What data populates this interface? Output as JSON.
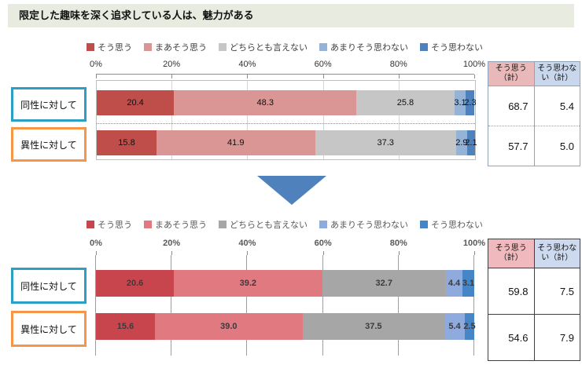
{
  "title": "限定した趣味を深く追求している人は、魅力がある",
  "arrow": {
    "color": "#4f81bd"
  },
  "chart_data": [
    {
      "type": "bar",
      "stacked": true,
      "orientation": "horizontal",
      "legend_position": "top",
      "grid": true,
      "xlim": [
        0,
        100
      ],
      "x_ticks": [
        "0%",
        "20%",
        "40%",
        "60%",
        "80%",
        "100%"
      ],
      "categories": [
        "同性に対して",
        "異性に対して"
      ],
      "category_box_colors": [
        "#2ca0c4",
        "#f79646"
      ],
      "series": [
        {
          "name": "そう思う",
          "color": "#bf4e4b",
          "values": [
            20.4,
            15.8
          ]
        },
        {
          "name": "まあそう思う",
          "color": "#d99694",
          "values": [
            48.3,
            41.9
          ]
        },
        {
          "name": "どちらとも言えない",
          "color": "#c6c6c6",
          "values": [
            25.8,
            37.3
          ]
        },
        {
          "name": "あまりそう思わない",
          "color": "#95b3d7",
          "values": [
            3.1,
            2.9
          ]
        },
        {
          "name": "そう思わない",
          "color": "#4f81bd",
          "values": [
            2.3,
            2.1
          ]
        }
      ],
      "summary_table": {
        "headers": [
          "そう思う（計）",
          "そう思わない（計）"
        ],
        "header_bg": [
          "#e8b9b8",
          "#c8d7eb"
        ],
        "rows": [
          [
            "68.7",
            "5.4"
          ],
          [
            "57.7",
            "5.0"
          ]
        ]
      }
    },
    {
      "type": "bar",
      "stacked": true,
      "orientation": "horizontal",
      "legend_position": "top",
      "grid": true,
      "xlim": [
        0,
        100
      ],
      "x_ticks": [
        "0%",
        "20%",
        "40%",
        "60%",
        "80%",
        "100%"
      ],
      "categories": [
        "同性に対して",
        "異性に対して"
      ],
      "category_box_colors": [
        "#2ca0c4",
        "#f79646"
      ],
      "series": [
        {
          "name": "そう思う",
          "color": "#c9454e",
          "values": [
            20.6,
            15.6
          ]
        },
        {
          "name": "まあそう思う",
          "color": "#e07980",
          "values": [
            39.2,
            39.0
          ]
        },
        {
          "name": "どちらとも言えない",
          "color": "#a6a6a6",
          "values": [
            32.7,
            37.5
          ]
        },
        {
          "name": "あまりそう思わない",
          "color": "#8faadc",
          "values": [
            4.4,
            5.4
          ]
        },
        {
          "name": "そう思わない",
          "color": "#4786c6",
          "values": [
            3.1,
            2.5
          ]
        }
      ],
      "summary_table": {
        "headers": [
          "そう思う（計）",
          "そう思わない（計）"
        ],
        "header_bg": [
          "#f0b9bd",
          "#cdd9ee"
        ],
        "rows": [
          [
            "59.8",
            "7.5"
          ],
          [
            "54.6",
            "7.9"
          ]
        ]
      }
    }
  ]
}
